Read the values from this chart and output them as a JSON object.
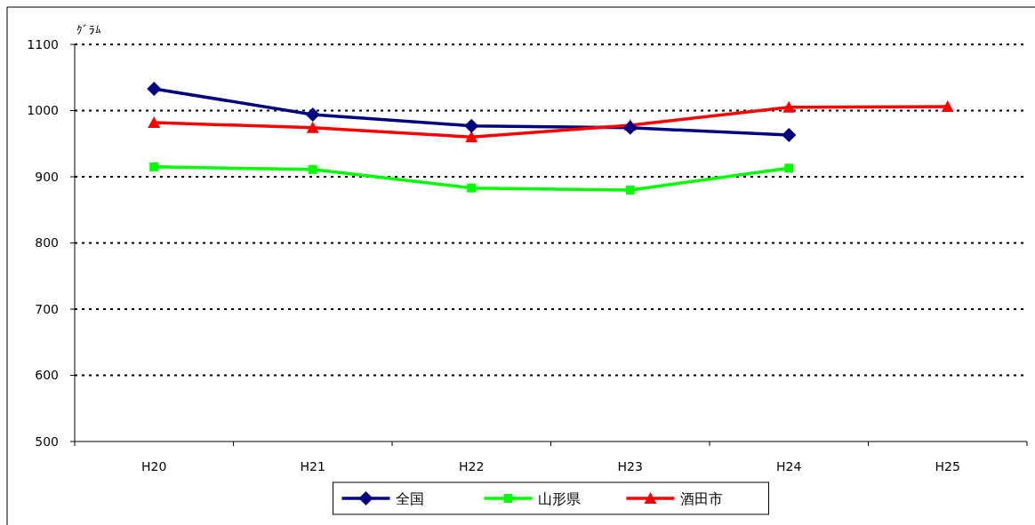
{
  "chart_data": {
    "type": "line",
    "ylabel": "ｸﾞﾗﾑ",
    "categories": [
      "H20",
      "H21",
      "H22",
      "H23",
      "H24",
      "H25"
    ],
    "series": [
      {
        "name": "全国",
        "color": "#000080",
        "marker": "diamond",
        "values": [
          1033,
          994,
          977,
          974,
          963,
          null
        ]
      },
      {
        "name": "山形県",
        "color": "#00ff00",
        "marker": "square",
        "values": [
          915,
          911,
          883,
          880,
          913,
          null
        ]
      },
      {
        "name": "酒田市",
        "color": "#ff0000",
        "marker": "triangle",
        "values": [
          982,
          974,
          960,
          978,
          1005,
          1006
        ]
      }
    ],
    "ylim": [
      500,
      1100
    ],
    "yticks": [
      500,
      600,
      700,
      800,
      900,
      1000,
      1100
    ],
    "grid": "y",
    "line_style": "solid",
    "legend": "bottom"
  }
}
